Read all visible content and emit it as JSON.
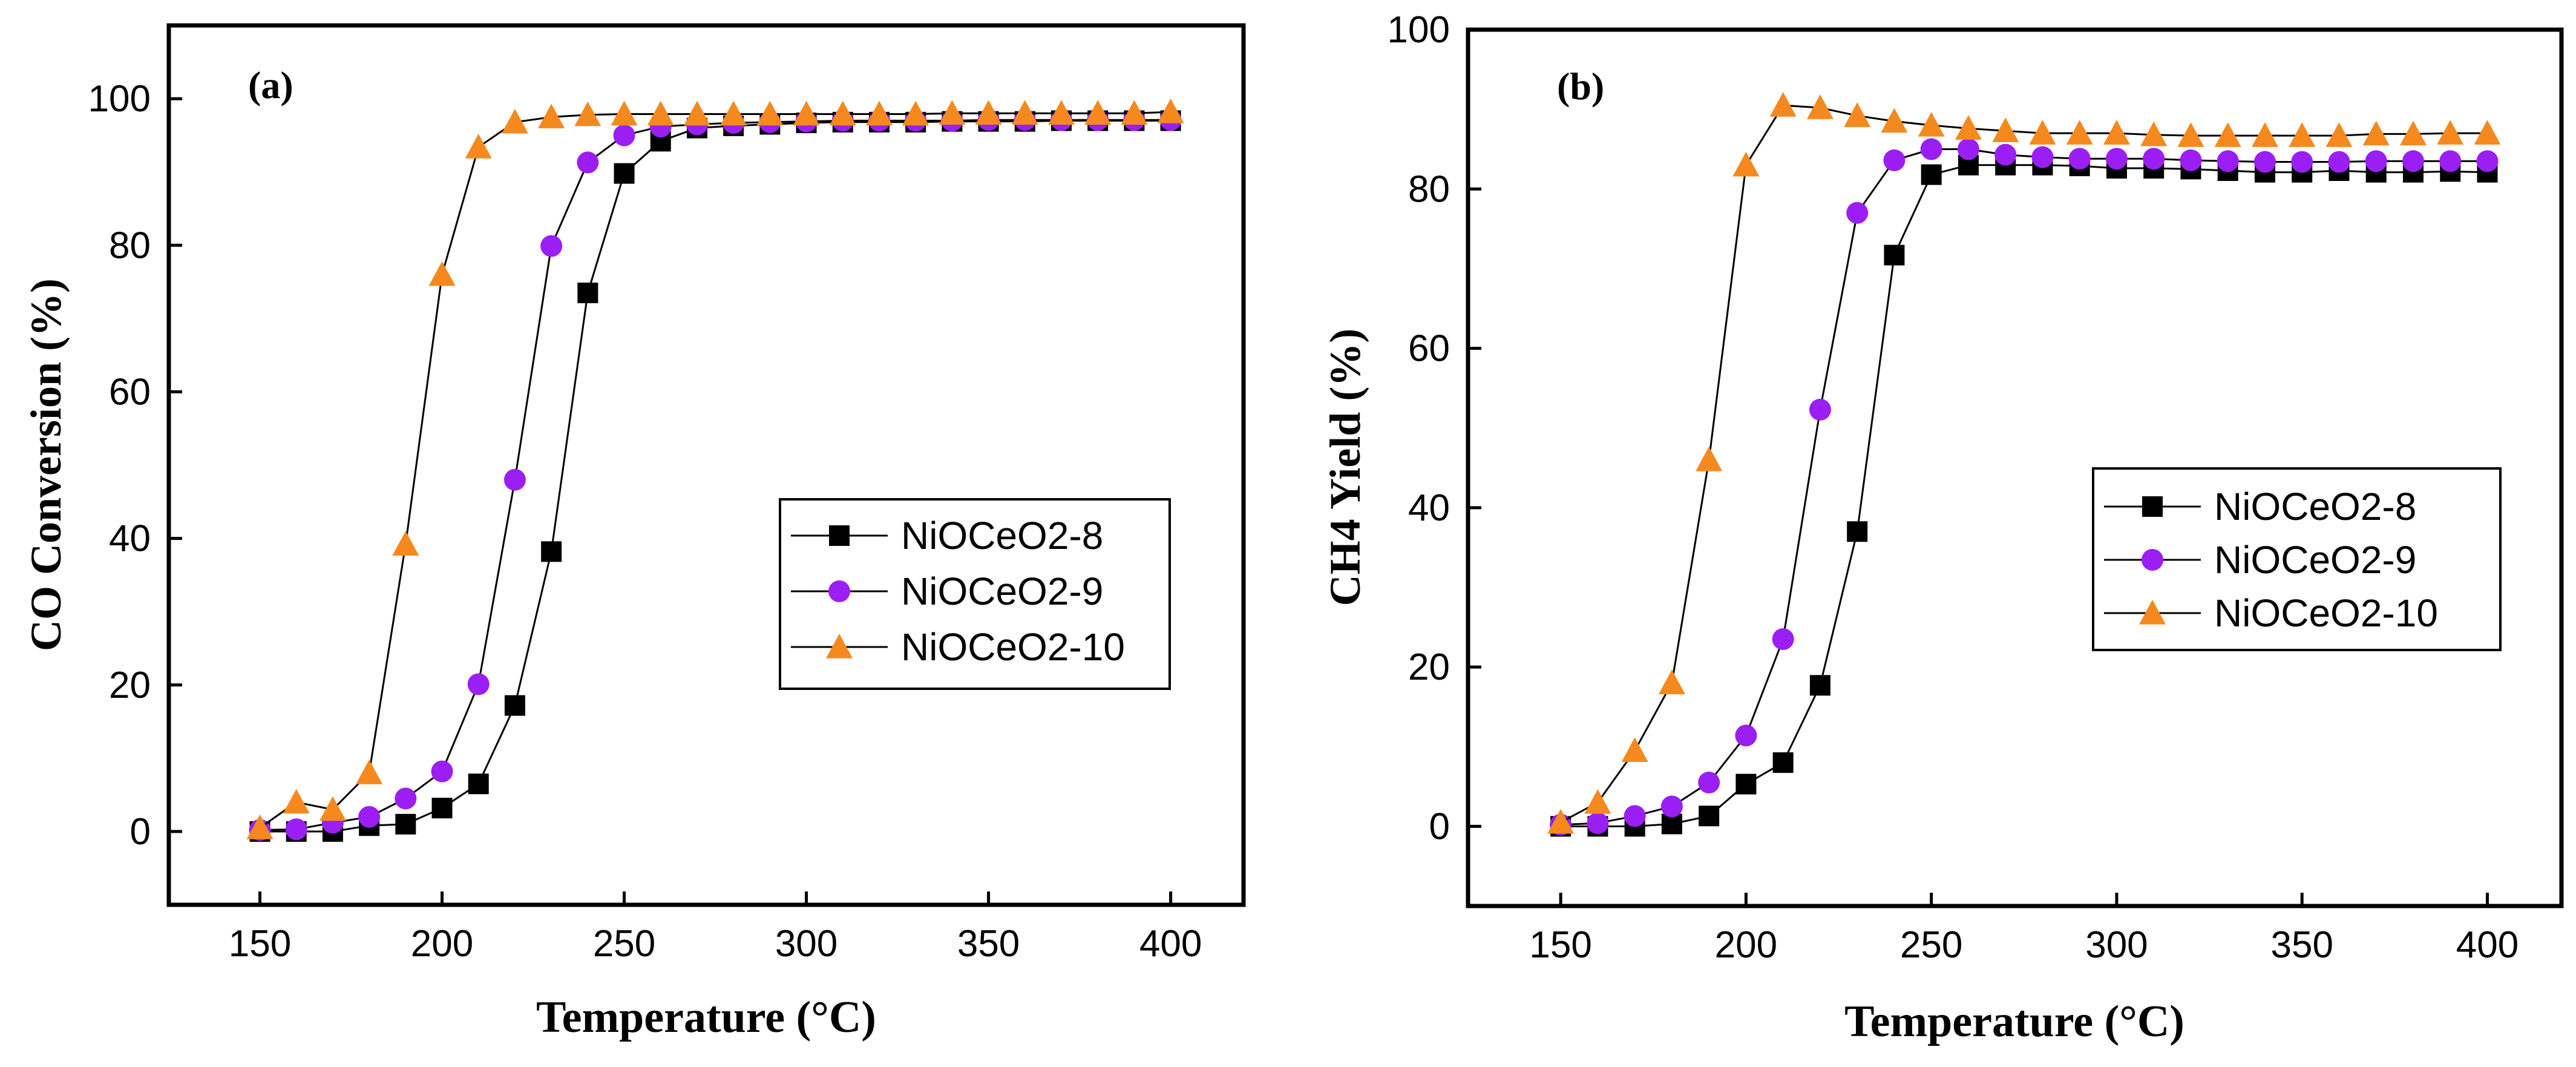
{
  "chart_data": [
    {
      "type": "line",
      "panel_label": "(a)",
      "xlabel": "Temperature (°C)",
      "ylabel": "CO Conversion (%)",
      "xlim": [
        125,
        420
      ],
      "ylim": [
        -10,
        110
      ],
      "xticks": [
        150,
        200,
        250,
        300,
        350,
        400
      ],
      "yticks": [
        0,
        20,
        40,
        60,
        80,
        100
      ],
      "legend_position": "center-right",
      "x": [
        150,
        160,
        170,
        180,
        190,
        200,
        210,
        220,
        230,
        240,
        250,
        260,
        270,
        280,
        290,
        300,
        310,
        320,
        330,
        340,
        350,
        360,
        370,
        380,
        390,
        400
      ],
      "series": [
        {
          "name": "NiOCeO2-8",
          "marker": "square",
          "color": "#000000",
          "values": [
            0,
            0,
            0,
            0.8,
            1,
            3.2,
            6.5,
            17.2,
            38.2,
            73.5,
            89.8,
            94.2,
            96,
            96.3,
            96.5,
            96.7,
            96.8,
            96.8,
            96.8,
            96.9,
            96.9,
            96.9,
            97,
            97,
            97,
            97
          ]
        },
        {
          "name": "NiOCeO2-9",
          "marker": "circle",
          "color": "#9b1ef5",
          "values": [
            0.2,
            0.3,
            1.2,
            2,
            4.5,
            8.2,
            20.1,
            48,
            79.9,
            91.3,
            95,
            96.2,
            96.5,
            96.7,
            96.8,
            96.9,
            97,
            97,
            97,
            97,
            97.1,
            97.1,
            97.1,
            97.1,
            97.1,
            97.1
          ]
        },
        {
          "name": "NiOCeO2-10",
          "marker": "triangle",
          "color": "#f5891e",
          "values": [
            0.5,
            4,
            3,
            8,
            39.2,
            76,
            93.4,
            96.8,
            97.5,
            97.8,
            97.9,
            97.9,
            97.9,
            97.9,
            97.9,
            97.9,
            97.9,
            97.9,
            97.9,
            98,
            98,
            98,
            98,
            98,
            98,
            98.2
          ]
        }
      ]
    },
    {
      "type": "line",
      "panel_label": "(b)",
      "xlabel": "Temperature (°C)",
      "ylabel": "CH4 Yield (%)",
      "xlim": [
        125,
        420
      ],
      "ylim": [
        -10,
        100
      ],
      "xticks": [
        150,
        200,
        250,
        300,
        350,
        400
      ],
      "yticks": [
        0,
        20,
        40,
        60,
        80,
        100
      ],
      "legend_position": "center-right",
      "x": [
        150,
        160,
        170,
        180,
        190,
        200,
        210,
        220,
        230,
        240,
        250,
        260,
        270,
        280,
        290,
        300,
        310,
        320,
        330,
        340,
        350,
        360,
        370,
        380,
        390,
        400
      ],
      "series": [
        {
          "name": "NiOCeO2-8",
          "marker": "square",
          "color": "#000000",
          "values": [
            0,
            0,
            0,
            0.3,
            1.3,
            5.3,
            8,
            17.7,
            37,
            71.7,
            81.8,
            83,
            83,
            83,
            82.9,
            82.6,
            82.6,
            82.5,
            82.3,
            82.1,
            82.1,
            82.3,
            82.1,
            82.1,
            82.2,
            82.1
          ]
        },
        {
          "name": "NiOCeO2-9",
          "marker": "circle",
          "color": "#9b1ef5",
          "values": [
            0.2,
            0.4,
            1.3,
            2.5,
            5.5,
            11.4,
            23.5,
            52.3,
            77,
            83.6,
            85,
            85,
            84.3,
            84,
            83.8,
            83.8,
            83.8,
            83.6,
            83.5,
            83.4,
            83.4,
            83.4,
            83.5,
            83.5,
            83.5,
            83.5
          ]
        },
        {
          "name": "NiOCeO2-10",
          "marker": "triangle",
          "color": "#f5891e",
          "values": [
            0.5,
            3,
            9.5,
            18,
            46,
            83,
            90.5,
            90.2,
            89.2,
            88.5,
            88,
            87.6,
            87.3,
            87,
            87,
            87,
            86.8,
            86.7,
            86.7,
            86.7,
            86.7,
            86.7,
            86.9,
            86.9,
            87,
            87
          ]
        }
      ]
    }
  ]
}
